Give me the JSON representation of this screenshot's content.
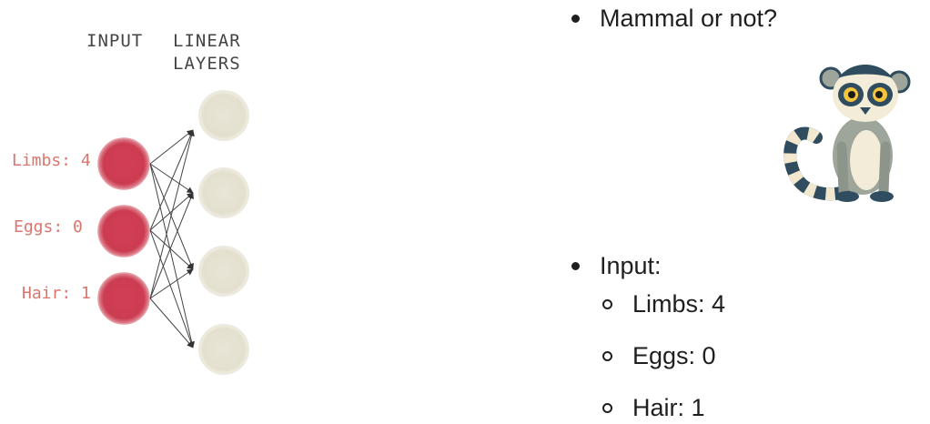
{
  "diagram": {
    "header_input": "INPUT",
    "header_linear_line1": "LINEAR",
    "header_linear_line2": "LAYERS",
    "inputs": [
      {
        "label": "Limbs: 4"
      },
      {
        "label": "Eggs: 0"
      },
      {
        "label": "Hair: 1"
      }
    ],
    "colors": {
      "input_node": "#d0475a",
      "hidden_node": "#e6e2d3",
      "input_label": "#d9766f",
      "header": "#444444",
      "edge": "#333333"
    }
  },
  "bullets": {
    "question": "Mammal or not?",
    "input_heading": "Input:",
    "input_items": [
      "Limbs: 4",
      "Eggs: 0",
      "Hair: 1"
    ]
  },
  "image": {
    "icon": "lemur-icon"
  }
}
